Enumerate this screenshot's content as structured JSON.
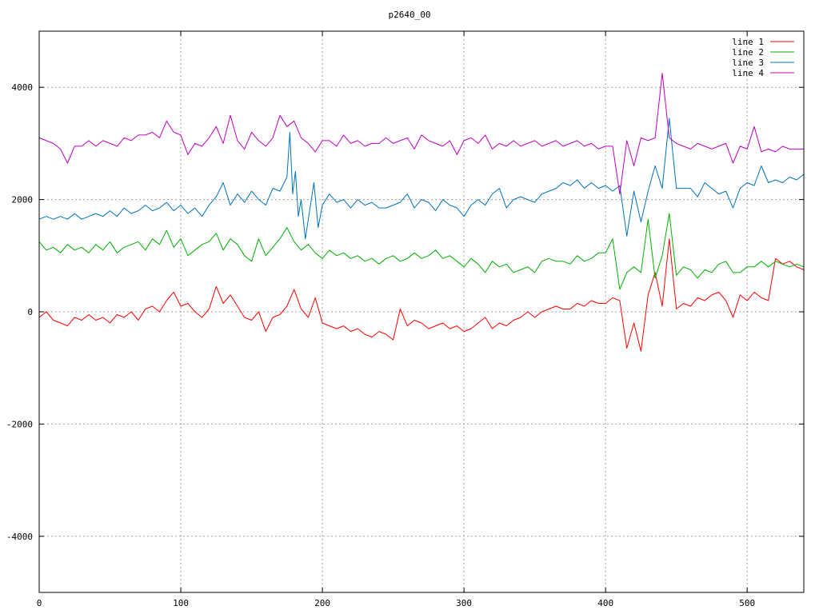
{
  "chart_data": {
    "type": "line",
    "title": "p2640_00",
    "xlabel": "",
    "ylabel": "",
    "xlim": [
      0,
      540
    ],
    "ylim": [
      -5000,
      5000
    ],
    "x_ticks": [
      0,
      100,
      200,
      300,
      400,
      500
    ],
    "y_ticks": [
      -4000,
      -2000,
      0,
      2000,
      4000
    ],
    "x_tick_labels": [
      "0",
      "100",
      "200",
      "300",
      "400",
      "500"
    ],
    "y_tick_labels": [
      "-4000",
      "-2000",
      "0",
      "2000",
      "4000"
    ],
    "grid": true,
    "legend_position": "top-right",
    "series": [
      {
        "name": "line 1",
        "color": "#ff0000",
        "x": [
          0,
          5,
          10,
          15,
          20,
          25,
          30,
          35,
          40,
          45,
          50,
          55,
          60,
          65,
          70,
          75,
          80,
          85,
          90,
          95,
          100,
          105,
          110,
          115,
          120,
          125,
          130,
          135,
          140,
          145,
          150,
          155,
          160,
          165,
          170,
          175,
          180,
          185,
          190,
          195,
          200,
          205,
          210,
          215,
          220,
          225,
          230,
          235,
          240,
          245,
          250,
          255,
          260,
          265,
          270,
          275,
          280,
          285,
          290,
          295,
          300,
          305,
          310,
          315,
          320,
          325,
          330,
          335,
          340,
          345,
          350,
          355,
          360,
          365,
          370,
          375,
          380,
          385,
          390,
          395,
          400,
          405,
          410,
          415,
          420,
          425,
          430,
          435,
          440,
          445,
          450,
          455,
          460,
          465,
          470,
          475,
          480,
          485,
          490,
          495,
          500,
          505,
          510,
          515,
          520,
          525,
          530,
          535,
          540
        ],
        "values": [
          -100,
          0,
          -150,
          -200,
          -250,
          -100,
          -150,
          -50,
          -150,
          -100,
          -200,
          -50,
          -100,
          0,
          -150,
          50,
          100,
          0,
          200,
          350,
          100,
          150,
          0,
          -100,
          50,
          450,
          150,
          300,
          100,
          -100,
          -150,
          0,
          -350,
          -100,
          -50,
          100,
          400,
          50,
          -100,
          250,
          -200,
          -250,
          -300,
          -250,
          -350,
          -300,
          -400,
          -450,
          -350,
          -400,
          -500,
          50,
          -250,
          -150,
          -200,
          -300,
          -250,
          -200,
          -300,
          -250,
          -350,
          -300,
          -200,
          -100,
          -300,
          -200,
          -250,
          -150,
          -100,
          0,
          -100,
          0,
          50,
          100,
          50,
          50,
          150,
          100,
          200,
          150,
          150,
          250,
          200,
          -650,
          -200,
          -700,
          300,
          700,
          100,
          1300,
          50,
          150,
          100,
          250,
          200,
          300,
          350,
          200,
          -100,
          300,
          200,
          350,
          250,
          200,
          950,
          850,
          900,
          800,
          750
        ]
      },
      {
        "name": "line 2",
        "color": "#00b000",
        "x": [
          0,
          5,
          10,
          15,
          20,
          25,
          30,
          35,
          40,
          45,
          50,
          55,
          60,
          65,
          70,
          75,
          80,
          85,
          90,
          95,
          100,
          105,
          110,
          115,
          120,
          125,
          130,
          135,
          140,
          145,
          150,
          155,
          160,
          165,
          170,
          175,
          180,
          185,
          190,
          195,
          200,
          205,
          210,
          215,
          220,
          225,
          230,
          235,
          240,
          245,
          250,
          255,
          260,
          265,
          270,
          275,
          280,
          285,
          290,
          295,
          300,
          305,
          310,
          315,
          320,
          325,
          330,
          335,
          340,
          345,
          350,
          355,
          360,
          365,
          370,
          375,
          380,
          385,
          390,
          395,
          400,
          405,
          410,
          415,
          420,
          425,
          430,
          435,
          440,
          445,
          450,
          455,
          460,
          465,
          470,
          475,
          480,
          485,
          490,
          495,
          500,
          505,
          510,
          515,
          520,
          525,
          530,
          535,
          540
        ],
        "values": [
          1250,
          1100,
          1150,
          1050,
          1200,
          1100,
          1150,
          1050,
          1200,
          1100,
          1250,
          1050,
          1150,
          1200,
          1250,
          1100,
          1300,
          1200,
          1450,
          1150,
          1300,
          1000,
          1100,
          1200,
          1250,
          1400,
          1100,
          1300,
          1200,
          1000,
          900,
          1300,
          1000,
          1150,
          1300,
          1500,
          1250,
          1100,
          1200,
          1050,
          950,
          1100,
          1000,
          1050,
          950,
          1000,
          900,
          950,
          850,
          950,
          1000,
          900,
          950,
          1050,
          950,
          1000,
          1100,
          950,
          1000,
          900,
          800,
          950,
          850,
          700,
          900,
          800,
          850,
          700,
          750,
          800,
          700,
          900,
          950,
          900,
          900,
          850,
          1000,
          900,
          950,
          1050,
          1050,
          1300,
          400,
          700,
          800,
          700,
          1650,
          600,
          1000,
          1750,
          650,
          800,
          750,
          600,
          750,
          700,
          850,
          900,
          700,
          700,
          800,
          800,
          900,
          800,
          900,
          850,
          800,
          850,
          800
        ]
      },
      {
        "name": "line 3",
        "color": "#0072bd",
        "x": [
          0,
          5,
          10,
          15,
          20,
          25,
          30,
          35,
          40,
          45,
          50,
          55,
          60,
          65,
          70,
          75,
          80,
          85,
          90,
          95,
          100,
          105,
          110,
          115,
          120,
          125,
          130,
          135,
          140,
          145,
          150,
          155,
          160,
          165,
          170,
          175,
          177,
          179,
          181,
          183,
          185,
          188,
          191,
          194,
          197,
          200,
          205,
          210,
          215,
          220,
          225,
          230,
          235,
          240,
          245,
          250,
          255,
          260,
          265,
          270,
          275,
          280,
          285,
          290,
          295,
          300,
          305,
          310,
          315,
          320,
          325,
          330,
          335,
          340,
          345,
          350,
          355,
          360,
          365,
          370,
          375,
          380,
          385,
          390,
          395,
          400,
          405,
          410,
          415,
          420,
          425,
          430,
          435,
          440,
          445,
          450,
          455,
          460,
          465,
          470,
          475,
          480,
          485,
          490,
          495,
          500,
          505,
          510,
          515,
          520,
          525,
          530,
          535,
          540
        ],
        "values": [
          1650,
          1700,
          1650,
          1700,
          1650,
          1750,
          1650,
          1700,
          1750,
          1700,
          1800,
          1700,
          1850,
          1750,
          1800,
          1900,
          1800,
          1850,
          1950,
          1800,
          1900,
          1750,
          1850,
          1700,
          1900,
          2050,
          2300,
          1900,
          2100,
          1950,
          2150,
          2000,
          1900,
          2200,
          2150,
          2400,
          3200,
          2100,
          2500,
          1700,
          2000,
          1300,
          1800,
          2300,
          1500,
          1900,
          2100,
          1950,
          2000,
          1850,
          2000,
          1900,
          1950,
          1850,
          1850,
          1900,
          1950,
          2100,
          1850,
          2000,
          1950,
          1800,
          2000,
          1900,
          1850,
          1700,
          1900,
          2000,
          1900,
          2100,
          2200,
          1850,
          2000,
          2050,
          2000,
          1950,
          2100,
          2150,
          2200,
          2300,
          2250,
          2350,
          2200,
          2300,
          2200,
          2250,
          2150,
          2250,
          1350,
          2150,
          1600,
          2150,
          2600,
          2200,
          3450,
          2200,
          2200,
          2200,
          2050,
          2300,
          2200,
          2100,
          2150,
          1850,
          2200,
          2300,
          2250,
          2600,
          2300,
          2350,
          2300,
          2400,
          2350,
          2450
        ]
      },
      {
        "name": "line 4",
        "color": "#c000c0",
        "x": [
          0,
          5,
          10,
          15,
          20,
          25,
          30,
          35,
          40,
          45,
          50,
          55,
          60,
          65,
          70,
          75,
          80,
          85,
          90,
          95,
          100,
          105,
          110,
          115,
          120,
          125,
          130,
          135,
          140,
          145,
          150,
          155,
          160,
          165,
          170,
          175,
          180,
          185,
          190,
          195,
          200,
          205,
          210,
          215,
          220,
          225,
          230,
          235,
          240,
          245,
          250,
          255,
          260,
          265,
          270,
          275,
          280,
          285,
          290,
          295,
          300,
          305,
          310,
          315,
          320,
          325,
          330,
          335,
          340,
          345,
          350,
          355,
          360,
          365,
          370,
          375,
          380,
          385,
          390,
          395,
          400,
          405,
          410,
          415,
          420,
          425,
          430,
          435,
          440,
          445,
          450,
          455,
          460,
          465,
          470,
          475,
          480,
          485,
          490,
          495,
          500,
          505,
          510,
          515,
          520,
          525,
          530,
          535,
          540
        ],
        "values": [
          3100,
          3050,
          3000,
          2900,
          2650,
          2950,
          2950,
          3050,
          2950,
          3050,
          3000,
          2950,
          3100,
          3050,
          3150,
          3150,
          3200,
          3100,
          3400,
          3200,
          3150,
          2800,
          3000,
          2950,
          3100,
          3300,
          3000,
          3500,
          3050,
          2900,
          3200,
          3050,
          2950,
          3100,
          3500,
          3300,
          3400,
          3100,
          3000,
          2850,
          3050,
          3050,
          2950,
          3150,
          3000,
          3050,
          2950,
          3000,
          3000,
          3100,
          3000,
          3050,
          3100,
          2900,
          3150,
          3050,
          3000,
          2950,
          3050,
          2800,
          3050,
          3100,
          3000,
          3150,
          2900,
          3000,
          2950,
          3050,
          2950,
          3000,
          3050,
          2950,
          3000,
          3050,
          2950,
          3000,
          3050,
          2950,
          3000,
          2900,
          2950,
          2950,
          2100,
          3050,
          2600,
          3100,
          3050,
          3100,
          4250,
          3100,
          3000,
          2950,
          2900,
          3000,
          2950,
          2900,
          2950,
          3000,
          2650,
          2950,
          2900,
          3300,
          2850,
          2900,
          2850,
          2950,
          2900,
          2900,
          2900
        ]
      }
    ]
  }
}
